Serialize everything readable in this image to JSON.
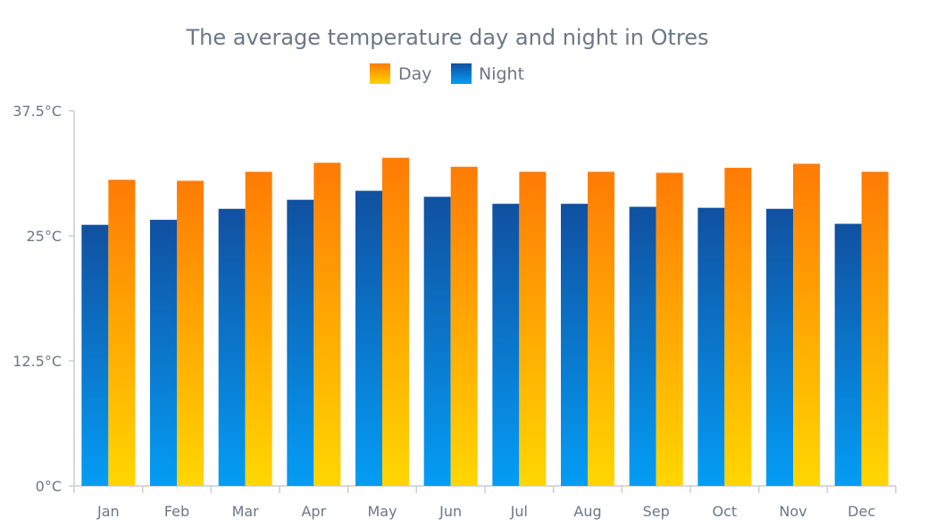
{
  "chart_data": {
    "type": "bar",
    "title": "The average temperature day and night in Otres",
    "xlabel": "",
    "ylabel": "",
    "categories": [
      "Jan",
      "Feb",
      "Mar",
      "Apr",
      "May",
      "Jun",
      "Jul",
      "Aug",
      "Sep",
      "Oct",
      "Nov",
      "Dec"
    ],
    "ylim": [
      0,
      37.5
    ],
    "yticks": [
      0,
      12.5,
      25,
      37.5
    ],
    "ytick_labels": [
      "0°C",
      "12.5°C",
      "25°C",
      "37.5°C"
    ],
    "legend_position": "top-center",
    "grid": false,
    "series": [
      {
        "name": "Night",
        "values": [
          26.1,
          26.6,
          27.7,
          28.6,
          29.5,
          28.9,
          28.2,
          28.2,
          27.9,
          27.8,
          27.7,
          26.2
        ],
        "color_top": "#1150a0",
        "color_bottom": "#049df5"
      },
      {
        "name": "Day",
        "values": [
          30.6,
          30.5,
          31.4,
          32.3,
          32.8,
          31.9,
          31.4,
          31.4,
          31.3,
          31.8,
          32.2,
          31.4
        ],
        "color_top": "#ff7b05",
        "color_bottom": "#ffd600"
      }
    ],
    "legend_order": [
      "Day",
      "Night"
    ]
  }
}
